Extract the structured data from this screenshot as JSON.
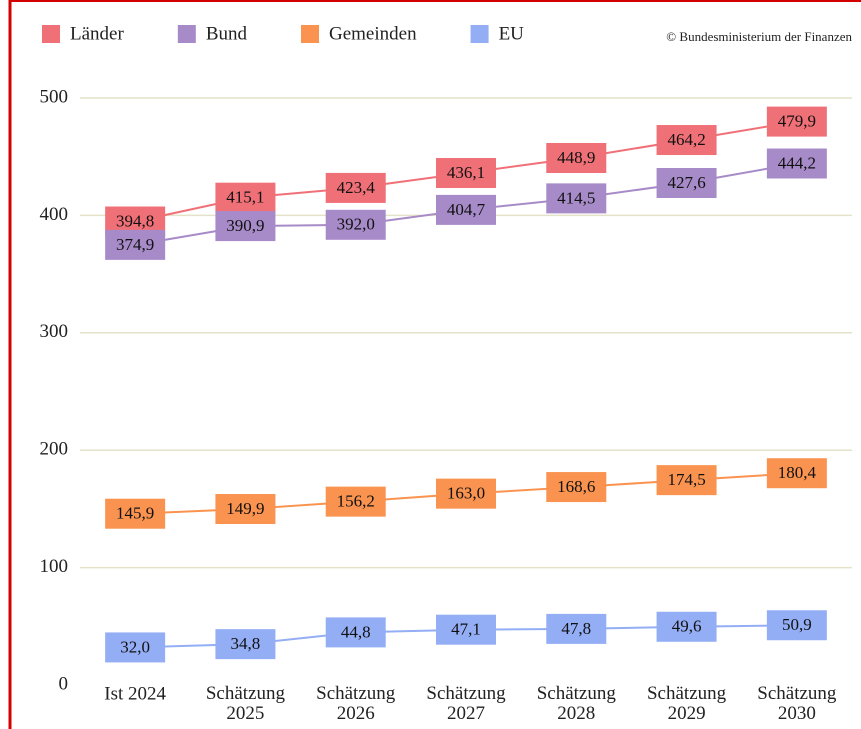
{
  "chart_data": {
    "type": "line",
    "source": "© Bundesministerium der Finanzen",
    "categories": [
      "Ist 2024",
      "Schätzung 2025",
      "Schätzung 2026",
      "Schätzung 2027",
      "Schätzung 2028",
      "Schätzung 2029",
      "Schätzung 2030"
    ],
    "series": [
      {
        "name": "Länder",
        "color": "#f07078",
        "values": [
          394.8,
          415.1,
          423.4,
          436.1,
          448.9,
          464.2,
          479.9
        ],
        "value_labels": [
          "394,8",
          "415,1",
          "423,4",
          "436,1",
          "448,9",
          "464,2",
          "479,9"
        ]
      },
      {
        "name": "Bund",
        "color": "#a78bc8",
        "values": [
          374.9,
          390.9,
          392.0,
          404.7,
          414.5,
          427.6,
          444.2
        ],
        "value_labels": [
          "374,9",
          "390,9",
          "392,0",
          "404,7",
          "414,5",
          "427,6",
          "444,2"
        ]
      },
      {
        "name": "Gemeinden",
        "color": "#f9934f",
        "values": [
          145.9,
          149.9,
          156.2,
          163.0,
          168.6,
          174.5,
          180.4
        ],
        "value_labels": [
          "145,9",
          "149,9",
          "156,2",
          "163,0",
          "168,6",
          "174,5",
          "180,4"
        ]
      },
      {
        "name": "EU",
        "color": "#94aef5",
        "values": [
          32.0,
          34.8,
          44.8,
          47.1,
          47.8,
          49.6,
          50.9
        ],
        "value_labels": [
          "32,0",
          "34,8",
          "44,8",
          "47,1",
          "47,8",
          "49,6",
          "50,9"
        ]
      }
    ],
    "ylim": [
      0,
      500
    ],
    "yticks": [
      0,
      100,
      200,
      300,
      400,
      500
    ],
    "grid": true
  }
}
